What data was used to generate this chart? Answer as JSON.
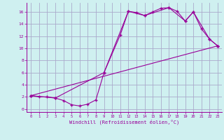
{
  "xlabel": "Windchill (Refroidissement éolien,°C)",
  "bg_color": "#cff0f0",
  "grid_color": "#aaaacc",
  "line_color": "#990099",
  "xlim": [
    -0.5,
    23.5
  ],
  "ylim": [
    -0.5,
    17.5
  ],
  "xticks": [
    0,
    1,
    2,
    3,
    4,
    5,
    6,
    7,
    8,
    9,
    10,
    11,
    12,
    13,
    14,
    15,
    16,
    17,
    18,
    19,
    20,
    21,
    22,
    23
  ],
  "yticks": [
    0,
    2,
    4,
    6,
    8,
    10,
    12,
    14,
    16
  ],
  "series1_x": [
    0,
    1,
    2,
    3,
    4,
    5,
    6,
    7,
    8,
    9,
    11,
    12,
    13,
    14,
    15,
    16,
    17,
    18,
    19,
    20,
    21,
    22,
    23
  ],
  "series1_y": [
    2.2,
    2.0,
    2.0,
    1.8,
    1.4,
    0.7,
    0.5,
    0.8,
    1.5,
    6.0,
    12.2,
    16.1,
    15.9,
    15.4,
    16.0,
    16.6,
    16.7,
    16.1,
    14.5,
    16.0,
    13.2,
    11.5,
    10.4
  ],
  "series2_x": [
    0,
    3,
    9,
    12,
    14,
    17,
    19,
    20,
    22,
    23
  ],
  "series2_y": [
    2.2,
    1.8,
    6.0,
    16.1,
    15.4,
    16.7,
    14.5,
    16.0,
    11.5,
    10.4
  ],
  "series3_x": [
    0,
    23
  ],
  "series3_y": [
    2.2,
    10.4
  ]
}
